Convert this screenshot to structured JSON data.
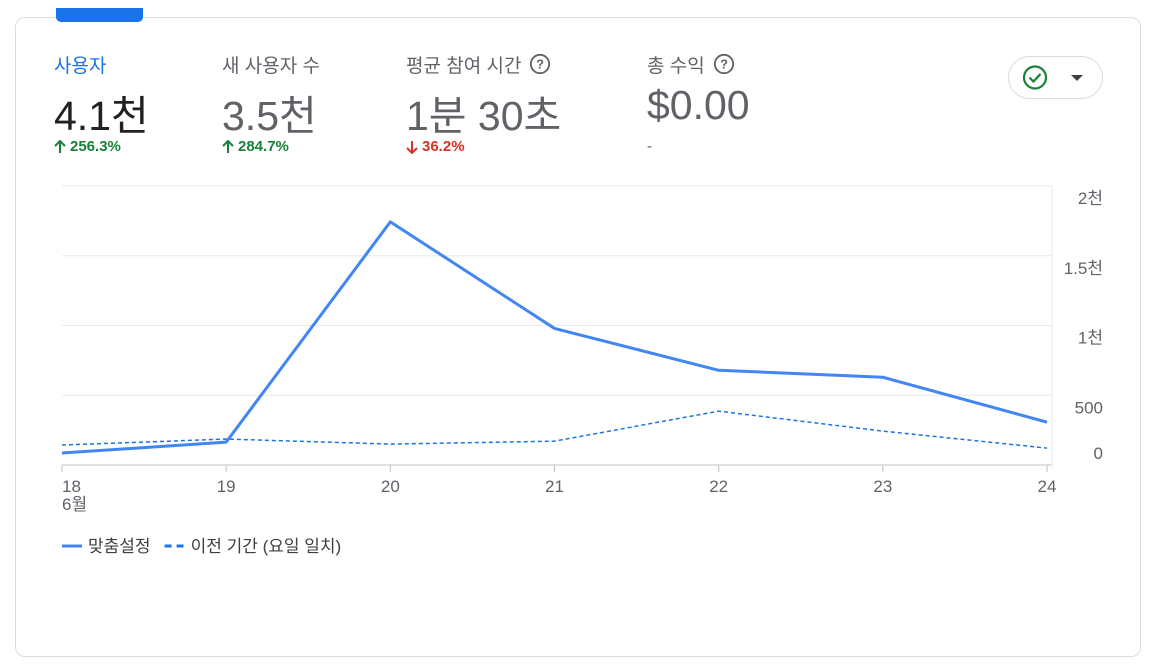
{
  "metrics": [
    {
      "label": "사용자",
      "value": "4.1천",
      "change": "256.3%"
    },
    {
      "label": "새 사용자 수",
      "value": "3.5천",
      "change": "284.7%"
    },
    {
      "label": "평균 참여 시간",
      "value": "1분 30초",
      "change": "36.2%"
    },
    {
      "label": "총 수익",
      "value": "$0.00",
      "change": "-"
    }
  ],
  "chart_data": {
    "type": "line",
    "categories": [
      "18",
      "19",
      "20",
      "21",
      "22",
      "23",
      "24"
    ],
    "month_label": "6월",
    "series": [
      {
        "name": "맞춤설정",
        "color": "#4285f4",
        "style": "solid",
        "values": [
          86,
          164,
          1743,
          979,
          679,
          629,
          307
        ]
      },
      {
        "name": "이전 기간 (요일 일치)",
        "color": "#1a73e8",
        "style": "dashed",
        "values": [
          143,
          186,
          150,
          171,
          386,
          243,
          121
        ]
      }
    ],
    "ylim": [
      0,
      2000
    ],
    "yticks": [
      0,
      500,
      {
        "value": 1000,
        "label": "1천"
      },
      {
        "value": 1500,
        "label": "1.5천"
      },
      {
        "value": 2000,
        "label": "2천"
      }
    ],
    "grid": true
  }
}
